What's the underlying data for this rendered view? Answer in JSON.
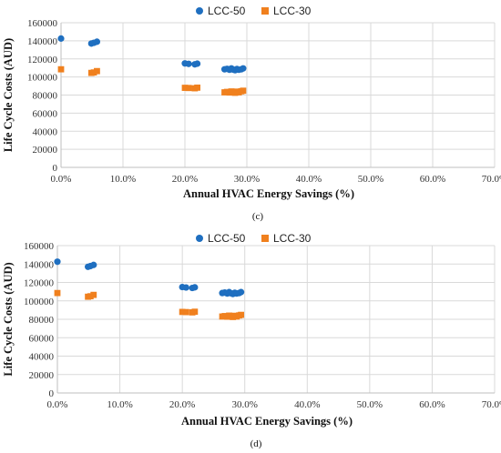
{
  "colors": {
    "lcc50": "#1f6fc0",
    "lcc30": "#f0801e",
    "grid": "#d9d9d9",
    "axis": "#bfbfbf"
  },
  "chart_data": [
    {
      "type": "scatter",
      "caption": "(c)",
      "xlabel": "Annual HVAC Energy Savings (%)",
      "ylabel": "Life Cycle Costs (AUD)",
      "xlim": [
        0,
        70
      ],
      "ylim": [
        0,
        160000
      ],
      "xticks": [
        "0.0%",
        "10.0%",
        "20.0%",
        "30.0%",
        "40.0%",
        "50.0%",
        "60.0%",
        "70.0%"
      ],
      "yticks": [
        "0",
        "20000",
        "40000",
        "60000",
        "80000",
        "100000",
        "120000",
        "140000",
        "160000"
      ],
      "grid": true,
      "legend_position": "top",
      "series": [
        {
          "name": "LCC-50",
          "marker": "circle",
          "x": [
            0,
            4.9,
            5.3,
            5.8,
            20,
            20.6,
            21.6,
            22,
            26.4,
            26.8,
            27.2,
            27.5,
            27.8,
            28.1,
            28.4,
            28.7,
            29.1,
            29.4
          ],
          "y": [
            142500,
            137000,
            137800,
            139000,
            115000,
            114500,
            114000,
            114700,
            108500,
            109000,
            108000,
            109500,
            108200,
            107500,
            108800,
            108000,
            108500,
            109500
          ]
        },
        {
          "name": "LCC-30",
          "marker": "square",
          "x": [
            0,
            4.9,
            5.3,
            5.8,
            20,
            20.6,
            21.6,
            22,
            26.4,
            26.8,
            27.2,
            27.5,
            27.8,
            28.1,
            28.4,
            28.7,
            29.1,
            29.4
          ],
          "y": [
            108500,
            104500,
            105000,
            106500,
            88000,
            87800,
            87500,
            88200,
            83000,
            83500,
            82800,
            84000,
            83200,
            82500,
            83800,
            83000,
            84200,
            84800
          ]
        }
      ]
    },
    {
      "type": "scatter",
      "caption": "(d)",
      "xlabel": "Annual HVAC Energy Savings (%)",
      "ylabel": "Life Cycle Costs (AUD)",
      "xlim": [
        0,
        70
      ],
      "ylim": [
        0,
        160000
      ],
      "xticks": [
        "0.0%",
        "10.0%",
        "20.0%",
        "30.0%",
        "40.0%",
        "50.0%",
        "60.0%",
        "70.0%"
      ],
      "yticks": [
        "0",
        "20000",
        "40000",
        "60000",
        "80000",
        "100000",
        "120000",
        "140000",
        "160000"
      ],
      "grid": true,
      "legend_position": "top",
      "series": [
        {
          "name": "LCC-50",
          "marker": "circle",
          "x": [
            0,
            4.9,
            5.3,
            5.8,
            20,
            20.6,
            21.6,
            22,
            26.4,
            26.8,
            27.2,
            27.5,
            27.8,
            28.1,
            28.4,
            28.7,
            29.1,
            29.4
          ],
          "y": [
            142500,
            137000,
            137800,
            139000,
            115000,
            114500,
            114000,
            114700,
            108500,
            109000,
            108000,
            109500,
            108200,
            107500,
            108800,
            108000,
            108500,
            109500
          ]
        },
        {
          "name": "LCC-30",
          "marker": "square",
          "x": [
            0,
            4.9,
            5.3,
            5.8,
            20,
            20.6,
            21.6,
            22,
            26.4,
            26.8,
            27.2,
            27.5,
            27.8,
            28.1,
            28.4,
            28.7,
            29.1,
            29.4
          ],
          "y": [
            108500,
            104500,
            105000,
            106500,
            88000,
            87800,
            87500,
            88200,
            83000,
            83500,
            82800,
            84000,
            83200,
            82500,
            83800,
            83000,
            84200,
            84800
          ]
        }
      ]
    }
  ]
}
